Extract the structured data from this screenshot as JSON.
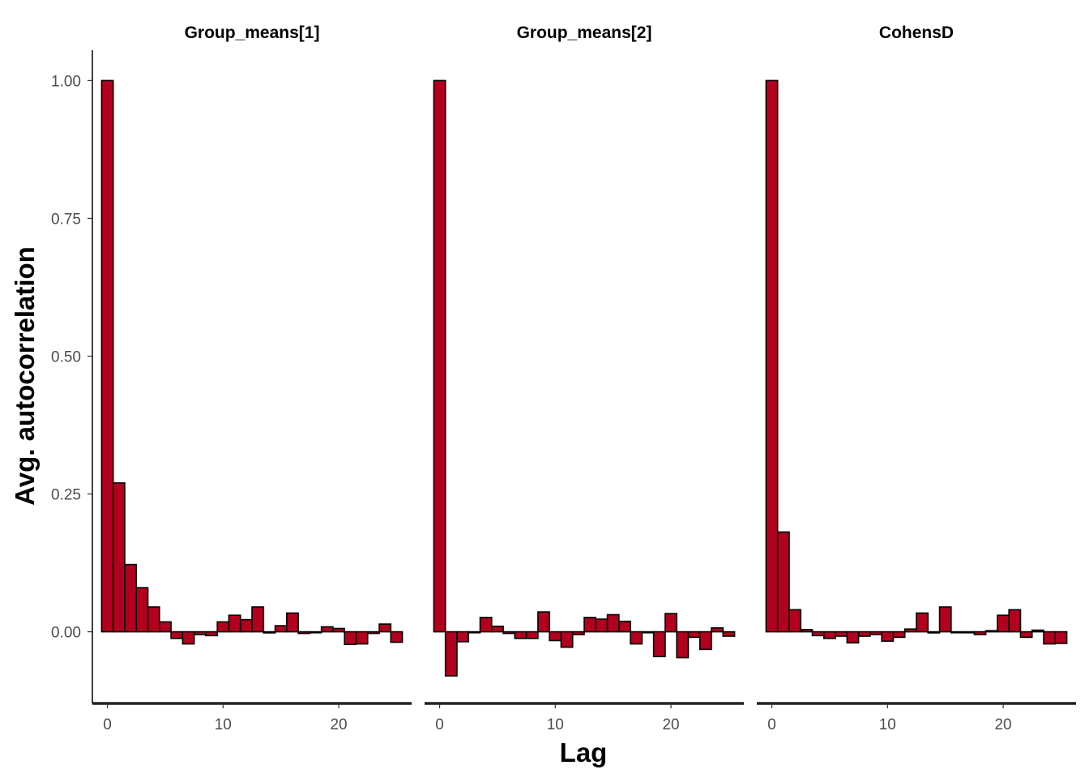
{
  "chart_data": {
    "type": "bar",
    "xlabel": "Lag",
    "ylabel": "Avg.  autocorrelation",
    "ylim": [
      -0.13,
      1.055
    ],
    "xlim": [
      -1.3,
      26.3
    ],
    "yticks": [
      0,
      0.25,
      0.5,
      0.75,
      1.0
    ],
    "ytick_labels": [
      "0.00",
      "0.25",
      "0.50",
      "0.75",
      "1.00"
    ],
    "xticks": [
      0,
      10,
      20
    ],
    "xtick_labels": [
      "0",
      "10",
      "20"
    ],
    "bar_fill": "#b2001f",
    "bar_edge": "#000000",
    "grid": false,
    "legend": "none",
    "x": [
      0,
      1,
      2,
      3,
      4,
      5,
      6,
      7,
      8,
      9,
      10,
      11,
      12,
      13,
      14,
      15,
      16,
      17,
      18,
      19,
      20,
      21,
      22,
      23,
      24,
      25
    ],
    "panels": [
      {
        "title": "Group_means[1]",
        "values": [
          1.0,
          0.27,
          0.122,
          0.08,
          0.045,
          0.018,
          -0.012,
          -0.022,
          -0.005,
          -0.007,
          0.018,
          0.03,
          0.022,
          0.045,
          -0.002,
          0.011,
          0.034,
          -0.003,
          0.0,
          0.009,
          0.006,
          -0.023,
          -0.022,
          -0.003,
          0.014,
          -0.019
        ]
      },
      {
        "title": "Group_means[2]",
        "values": [
          1.0,
          -0.08,
          -0.018,
          0.0,
          0.026,
          0.01,
          -0.003,
          -0.012,
          -0.012,
          0.036,
          -0.016,
          -0.028,
          -0.005,
          0.026,
          0.023,
          0.031,
          0.019,
          -0.022,
          0.0,
          -0.045,
          0.033,
          -0.047,
          -0.01,
          -0.032,
          0.007,
          -0.008
        ]
      },
      {
        "title": "CohensD",
        "values": [
          1.0,
          0.181,
          0.04,
          0.004,
          -0.007,
          -0.012,
          -0.008,
          -0.02,
          -0.008,
          -0.005,
          -0.017,
          -0.01,
          0.005,
          0.034,
          -0.002,
          0.045,
          -0.001,
          -0.001,
          -0.005,
          0.002,
          0.03,
          0.04,
          -0.01,
          0.003,
          -0.022,
          -0.021
        ]
      }
    ]
  }
}
